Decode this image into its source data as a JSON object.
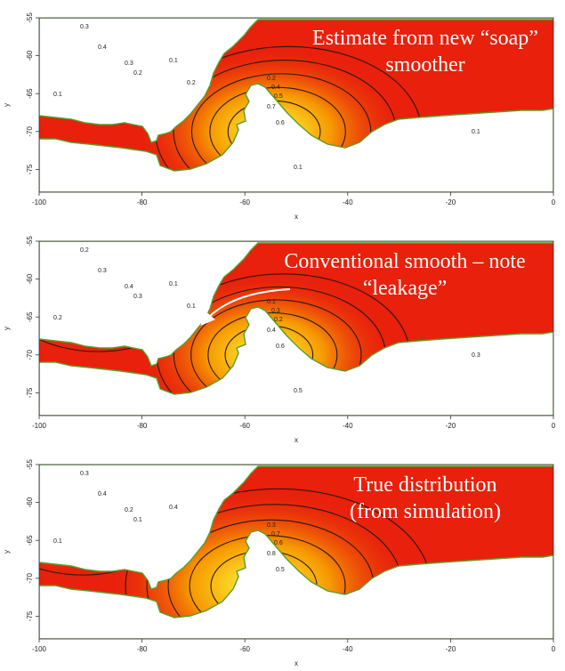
{
  "chart_data": [
    {
      "type": "heatmap",
      "title": "",
      "xlabel": "x",
      "ylabel": "y",
      "xlim": [
        -100,
        0
      ],
      "ylim": [
        -78,
        -55
      ],
      "x_ticks": [
        "-100",
        "-80",
        "-60",
        "-40",
        "-20",
        "0"
      ],
      "y_ticks": [
        "-55",
        "-60",
        "-65",
        "-70",
        "-75"
      ],
      "annotation": [
        "Estimate from new “soap”",
        "smoother"
      ],
      "contour_labels": [
        "0.3",
        "0.4",
        "0.3",
        "0.2",
        "0.1",
        "0.1",
        "0.2",
        "0.4",
        "0.5",
        "0.7",
        "0.6",
        "0.1",
        "0.1",
        "0.2"
      ],
      "peaks": [
        {
          "x": -90,
          "y": -61,
          "value": 0.45
        },
        {
          "x": -55,
          "y": -70,
          "value": 0.75
        }
      ],
      "colors": {
        "low": "#e8200c",
        "mid": "#f7a000",
        "high": "#ffff40",
        "land_edge": "#5a9e2a"
      }
    },
    {
      "type": "heatmap",
      "title": "",
      "xlabel": "x",
      "ylabel": "y",
      "xlim": [
        -100,
        0
      ],
      "ylim": [
        -78,
        -55
      ],
      "x_ticks": [
        "-100",
        "-80",
        "-60",
        "-40",
        "-20",
        "0"
      ],
      "y_ticks": [
        "-55",
        "-60",
        "-65",
        "-70",
        "-75"
      ],
      "annotation": [
        "Conventional smooth – note",
        "“leakage”"
      ],
      "contour_labels": [
        "0.2",
        "0.3",
        "0.4",
        "0.3",
        "0.2",
        "0.1",
        "0.1",
        "0.3",
        "0.2",
        "0.4",
        "0.6",
        "0.5",
        "0.3",
        "0.1"
      ],
      "peaks": [
        {
          "x": -92,
          "y": -61,
          "value": 0.5
        },
        {
          "x": -56,
          "y": -70,
          "value": 0.7
        }
      ],
      "colors": {
        "low": "#e8200c",
        "mid": "#f7a000",
        "high": "#ffff40",
        "land_edge": "#5a9e2a"
      }
    },
    {
      "type": "heatmap",
      "title": "",
      "xlabel": "x",
      "ylabel": "y",
      "xlim": [
        -100,
        0
      ],
      "ylim": [
        -78,
        -55
      ],
      "x_ticks": [
        "-100",
        "-80",
        "-60",
        "-40",
        "-20",
        "0"
      ],
      "y_ticks": [
        "-55",
        "-60",
        "-65",
        "-70",
        "-75"
      ],
      "annotation": [
        "True distribution",
        "(from simulation)"
      ],
      "contour_labels": [
        "0.3",
        "0.4",
        "0.2",
        "0.1",
        "0.1",
        "0.4",
        "0.3",
        "0.7",
        "0.6",
        "0.8",
        "0.5"
      ],
      "peaks": [
        {
          "x": -95,
          "y": -61,
          "value": 0.5
        },
        {
          "x": -57,
          "y": -71,
          "value": 0.9
        }
      ],
      "colors": {
        "low": "#e8200c",
        "mid": "#f7a000",
        "high": "#ffff40",
        "land_edge": "#5a9e2a"
      }
    }
  ]
}
